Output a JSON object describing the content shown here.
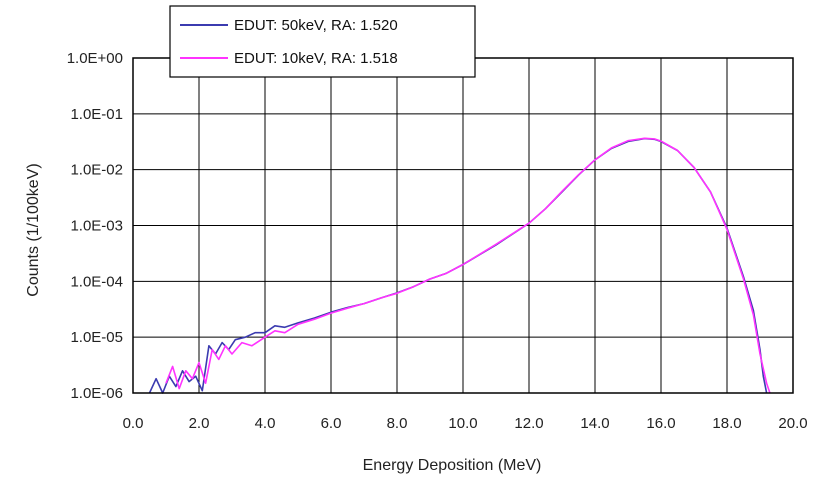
{
  "chart_data": {
    "type": "line",
    "title": "",
    "xlabel": "Energy Deposition (MeV)",
    "ylabel": "Counts (1/100keV)",
    "xlim": [
      0,
      20
    ],
    "ylim": [
      1e-06,
      1
    ],
    "yscale": "log",
    "grid": true,
    "legend_position": "top-left, above plot",
    "x_tick_labels": [
      "0.0",
      "2.0",
      "4.0",
      "6.0",
      "8.0",
      "10.0",
      "12.0",
      "14.0",
      "16.0",
      "18.0",
      "20.0"
    ],
    "y_tick_labels": [
      "1.0E+00",
      "1.0E-01",
      "1.0E-02",
      "1.0E-03",
      "1.0E-04",
      "1.0E-05",
      "1.0E-06"
    ],
    "series": [
      {
        "name": "EDUT: 50keV, RA: 1.520",
        "color": "#3b3bb0",
        "x": [
          0.5,
          0.7,
          0.9,
          1.1,
          1.3,
          1.5,
          1.7,
          1.9,
          2.1,
          2.3,
          2.5,
          2.7,
          2.9,
          3.1,
          3.4,
          3.7,
          4.0,
          4.3,
          4.6,
          5.0,
          5.5,
          6.0,
          6.5,
          7.0,
          7.5,
          8.0,
          8.5,
          9.0,
          9.5,
          10.0,
          11.0,
          12.0,
          12.5,
          13.0,
          13.5,
          14.0,
          14.5,
          15.0,
          15.5,
          15.8,
          16.0,
          16.5,
          17.0,
          17.5,
          18.0,
          18.5,
          18.8,
          19.0,
          19.1,
          19.2
        ],
        "y": [
          1e-06,
          1.8e-06,
          1e-06,
          2e-06,
          1.3e-06,
          2.5e-06,
          1.6e-06,
          2e-06,
          1.1e-06,
          7e-06,
          5e-06,
          8e-06,
          6e-06,
          9e-06,
          1e-05,
          1.2e-05,
          1.2e-05,
          1.6e-05,
          1.5e-05,
          1.8e-05,
          2.2e-05,
          2.8e-05,
          3.4e-05,
          4e-05,
          5e-05,
          6.2e-05,
          8e-05,
          0.00011,
          0.00014,
          0.0002,
          0.00045,
          0.0011,
          0.002,
          0.004,
          0.008,
          0.015,
          0.024,
          0.032,
          0.036,
          0.035,
          0.032,
          0.022,
          0.011,
          0.004,
          0.0009,
          0.00012,
          3e-05,
          6e-06,
          2e-06,
          1e-06
        ]
      },
      {
        "name": "EDUT: 10keV, RA: 1.518",
        "color": "#ff33ff",
        "x": [
          1.0,
          1.2,
          1.4,
          1.6,
          1.8,
          2.0,
          2.2,
          2.4,
          2.6,
          2.8,
          3.0,
          3.3,
          3.6,
          4.0,
          4.3,
          4.6,
          5.0,
          5.5,
          6.0,
          6.5,
          7.0,
          7.5,
          8.0,
          8.5,
          9.0,
          9.5,
          10.0,
          11.0,
          12.0,
          12.5,
          13.0,
          13.5,
          14.0,
          14.5,
          15.0,
          15.5,
          15.8,
          16.0,
          16.5,
          17.0,
          17.5,
          18.0,
          18.5,
          18.8,
          19.0,
          19.2,
          19.3
        ],
        "y": [
          1.5e-06,
          3e-06,
          1.2e-06,
          2.5e-06,
          1.8e-06,
          3.5e-06,
          1.5e-06,
          6e-06,
          4e-06,
          7e-06,
          5e-06,
          8e-06,
          7e-06,
          1e-05,
          1.3e-05,
          1.2e-05,
          1.7e-05,
          2.1e-05,
          2.7e-05,
          3.3e-05,
          4e-05,
          5e-05,
          6.1e-05,
          8e-05,
          0.00011,
          0.00014,
          0.0002,
          0.00046,
          0.0011,
          0.002,
          0.0041,
          0.0081,
          0.015,
          0.0245,
          0.033,
          0.0365,
          0.0355,
          0.0325,
          0.022,
          0.011,
          0.004,
          0.00085,
          0.00011,
          2.5e-05,
          5e-06,
          1.5e-06,
          1e-06
        ]
      }
    ]
  }
}
